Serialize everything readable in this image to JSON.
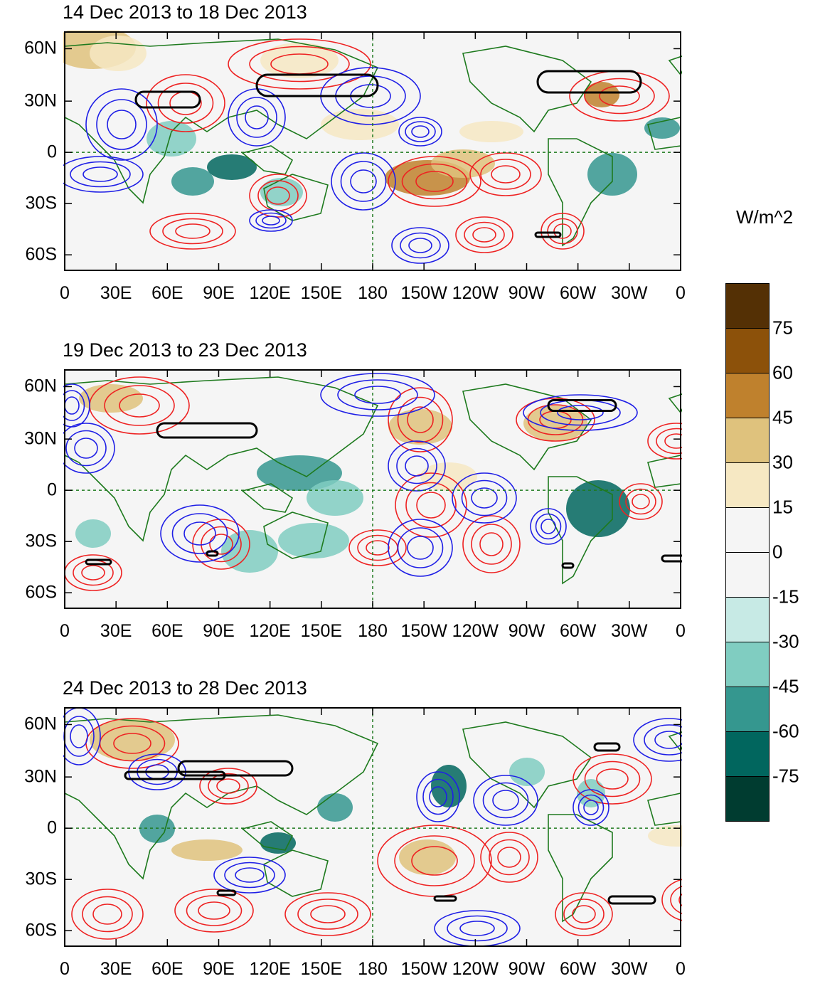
{
  "units": "W/m^2",
  "lon_labels": [
    "0",
    "30E",
    "60E",
    "90E",
    "120E",
    "150E",
    "180",
    "150W",
    "120W",
    "90W",
    "60W",
    "30W",
    "0"
  ],
  "lat_labels": [
    "60N",
    "30N",
    "0",
    "30S",
    "60S"
  ],
  "colorbar": {
    "levels": [
      "75",
      "60",
      "45",
      "30",
      "15",
      "0",
      "-15",
      "-30",
      "-45",
      "-60",
      "-75"
    ],
    "colors": [
      "#543005",
      "#8c510a",
      "#bf812d",
      "#dfc27d",
      "#f6e8c3",
      "#f5f5f5",
      "#f5f5f5",
      "#c7eae5",
      "#80cdc1",
      "#35978f",
      "#01665e",
      "#003c30"
    ]
  },
  "colors": {
    "positive_contour": "#ee2222",
    "negative_contour": "#1f1fe6",
    "coastline": "#1e7a1e",
    "highlight_contour": "#000000"
  },
  "panels": [
    {
      "title": "14 Dec 2013 to 18 Dec 2013"
    },
    {
      "title": "19 Dec 2013 to 23 Dec 2013"
    },
    {
      "title": "24 Dec 2013 to 28 Dec 2013"
    }
  ]
}
